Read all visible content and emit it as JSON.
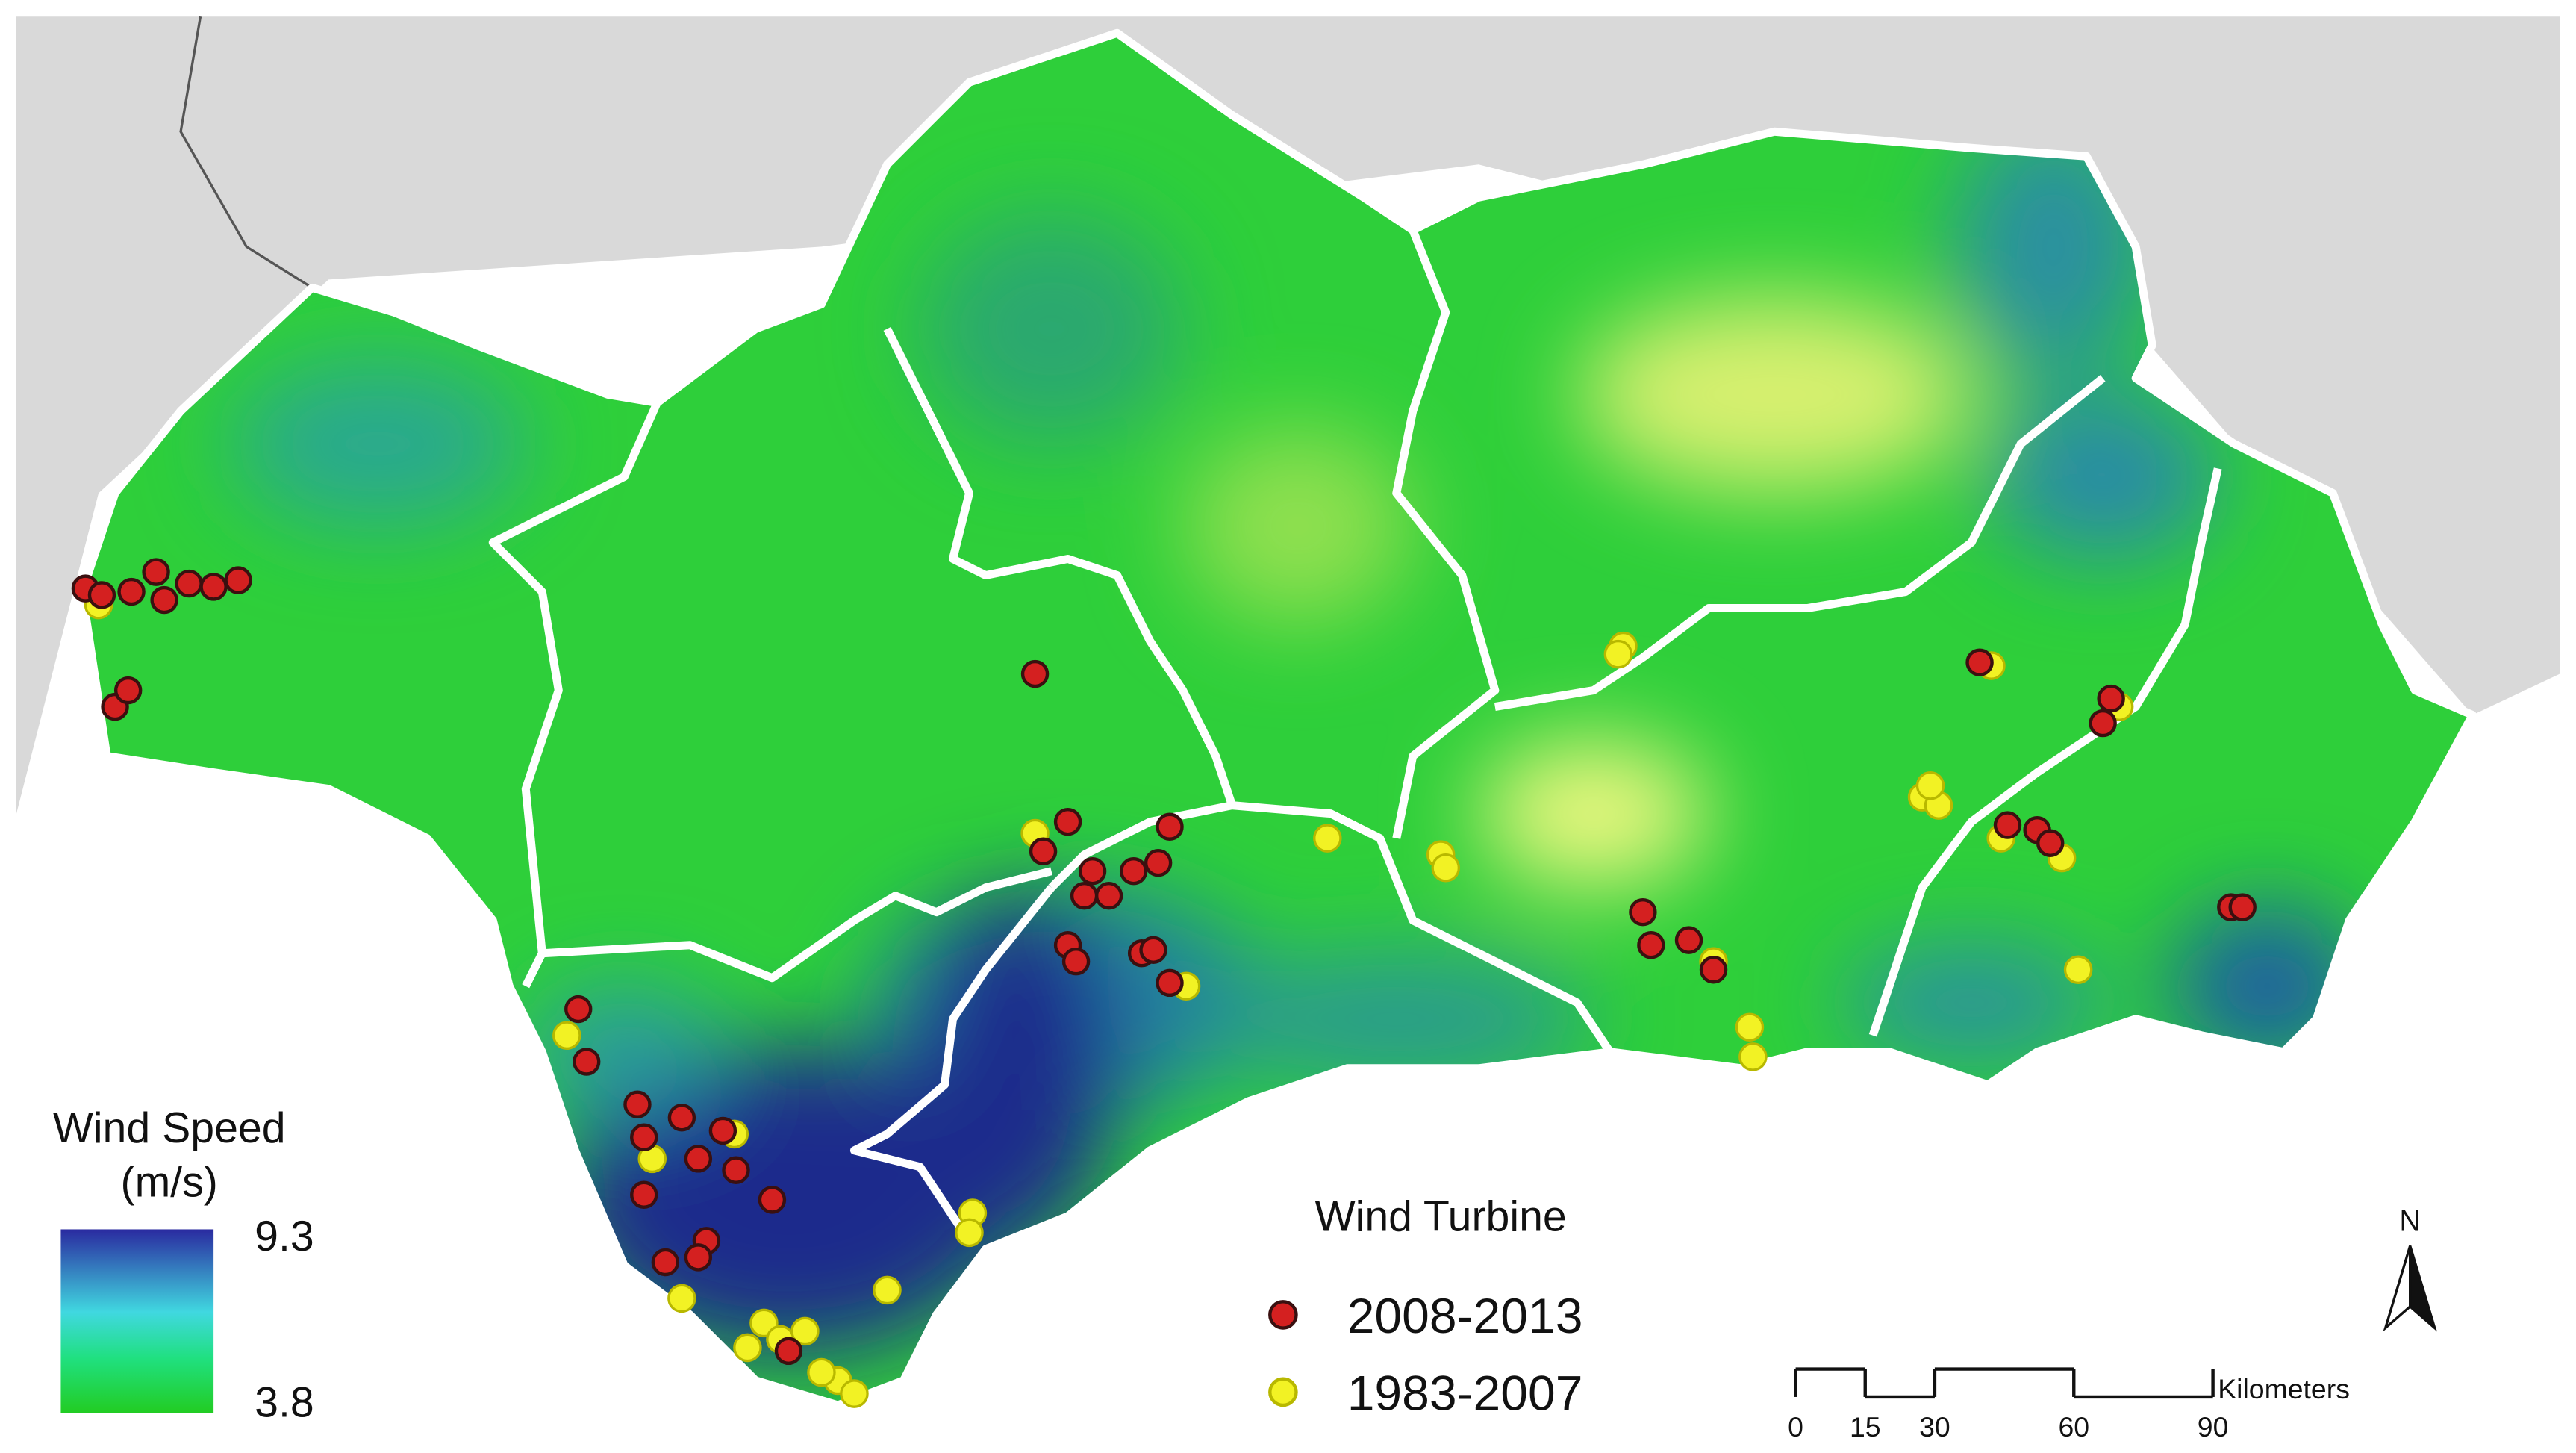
{
  "legend": {
    "title": [
      "Wind Speed",
      "(m/s)"
    ],
    "max": 9.3,
    "min": 3.8
  },
  "turbine_legend": {
    "title": "Wind Turbine",
    "items": [
      {
        "label": "2008-2013",
        "color": "#d42020"
      },
      {
        "label": "1983-2007",
        "color": "#f2f224"
      }
    ]
  },
  "scale_bar": {
    "ticks": [
      0,
      15,
      30,
      60,
      90
    ],
    "unit": "Kilometers"
  },
  "north": "N"
}
